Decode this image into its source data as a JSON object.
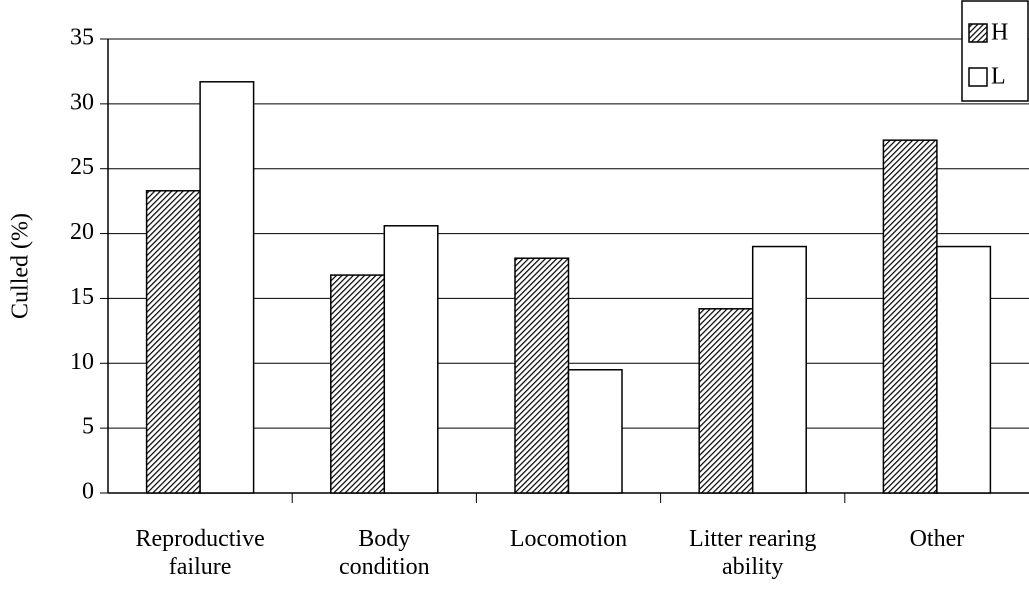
{
  "chart_data": {
    "type": "bar",
    "y_label": "Culled (%)",
    "categories": [
      "Reproductive\nfailure",
      "Body\ncondition",
      "Locomotion",
      "Litter rearing\nability",
      "Other"
    ],
    "series": [
      {
        "name": "H",
        "color": "#000000",
        "hatch": true,
        "values": [
          23.3,
          16.8,
          18.1,
          14.2,
          27.2
        ]
      },
      {
        "name": "L",
        "color": "#ffffff",
        "hatch": false,
        "values": [
          31.7,
          20.6,
          9.5,
          19.0,
          19.0
        ]
      }
    ],
    "ylim": [
      0,
      35
    ],
    "yticks": [
      0,
      5,
      10,
      15,
      20,
      25,
      30,
      35
    ],
    "grid": true,
    "legend": "top-right"
  }
}
